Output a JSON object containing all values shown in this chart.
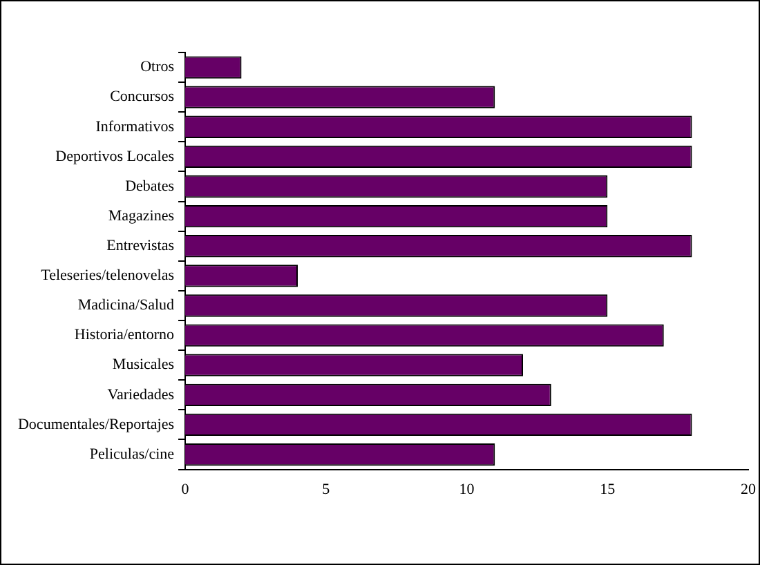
{
  "chart_data": {
    "type": "bar",
    "orientation": "horizontal",
    "categories": [
      "Otros",
      "Concursos",
      "Informativos",
      "Deportivos Locales",
      "Debates",
      "Magazines",
      "Entrevistas",
      "Teleseries/telenovelas",
      "Madicina/Salud",
      "Historia/entorno",
      "Musicales",
      "Variedades",
      "Documentales/Reportajes",
      "Peliculas/cine"
    ],
    "values": [
      2,
      11,
      18,
      18,
      15,
      15,
      18,
      4,
      15,
      17,
      12,
      13,
      18,
      11
    ],
    "color": "#660066",
    "xlim": [
      0,
      20
    ],
    "xticks": [
      0,
      5,
      10,
      15,
      20
    ],
    "grid": false,
    "legend": false
  }
}
